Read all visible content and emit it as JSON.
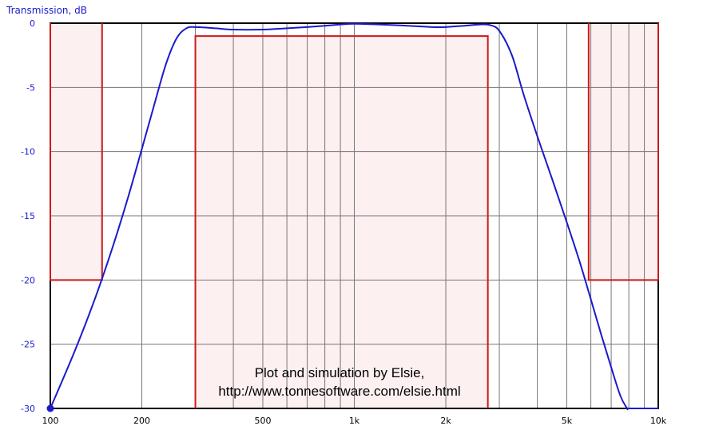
{
  "chart_data": {
    "type": "line",
    "ylabel": "Transmission, dB",
    "xscale": "log",
    "xlim": [
      100,
      10000
    ],
    "ylim": [
      -30,
      0
    ],
    "grid": true,
    "x_ticks": [
      {
        "value": 100,
        "label": "100"
      },
      {
        "value": 200,
        "label": "200"
      },
      {
        "value": 500,
        "label": "500"
      },
      {
        "value": 1000,
        "label": "1k"
      },
      {
        "value": 2000,
        "label": "2k"
      },
      {
        "value": 5000,
        "label": "5k"
      },
      {
        "value": 10000,
        "label": "10k"
      }
    ],
    "y_ticks": [
      {
        "value": 0,
        "label": "0"
      },
      {
        "value": -5,
        "label": "-5"
      },
      {
        "value": -10,
        "label": "-10"
      },
      {
        "value": -15,
        "label": "-15"
      },
      {
        "value": -20,
        "label": "-20"
      },
      {
        "value": -25,
        "label": "-25"
      },
      {
        "value": -30,
        "label": "-30"
      }
    ],
    "series": [
      {
        "color": "#1a1acc",
        "x": [
          100,
          120,
          140,
          160,
          180,
          200,
          220,
          240,
          260,
          280,
          300,
          350,
          400,
          500,
          600,
          700,
          800,
          900,
          1000,
          1200,
          1500,
          1800,
          2000,
          2300,
          2600,
          2800,
          3000,
          3300,
          3600,
          4000,
          4500,
          5000,
          5500,
          6000,
          6500,
          7000,
          7500,
          7900,
          8000,
          9000,
          10000
        ],
        "y": [
          -30,
          -25.6,
          -21.5,
          -17.5,
          -13.6,
          -9.8,
          -6.3,
          -3.2,
          -1.2,
          -0.4,
          -0.3,
          -0.4,
          -0.5,
          -0.5,
          -0.4,
          -0.3,
          -0.2,
          -0.1,
          -0.05,
          -0.1,
          -0.2,
          -0.3,
          -0.3,
          -0.2,
          -0.1,
          -0.15,
          -0.6,
          -2.5,
          -5.5,
          -8.8,
          -12.3,
          -15.5,
          -18.5,
          -21.5,
          -24.3,
          -26.8,
          -29.0,
          -30,
          -30,
          -30,
          -30
        ]
      }
    ],
    "masks": {
      "color": "#cc1a1a",
      "fill": "#fdf0f0",
      "regions": [
        {
          "x": [
            100,
            148
          ],
          "y": [
            -20,
            0
          ]
        },
        {
          "x": [
            300,
            2750
          ],
          "y": [
            -30,
            -1
          ]
        },
        {
          "x": [
            5900,
            10000
          ],
          "y": [
            -20,
            0
          ]
        }
      ]
    },
    "annotations": [
      "Plot and simulation by Elsie,",
      "http://www.tonnesoftware.com/elsie.html"
    ]
  }
}
